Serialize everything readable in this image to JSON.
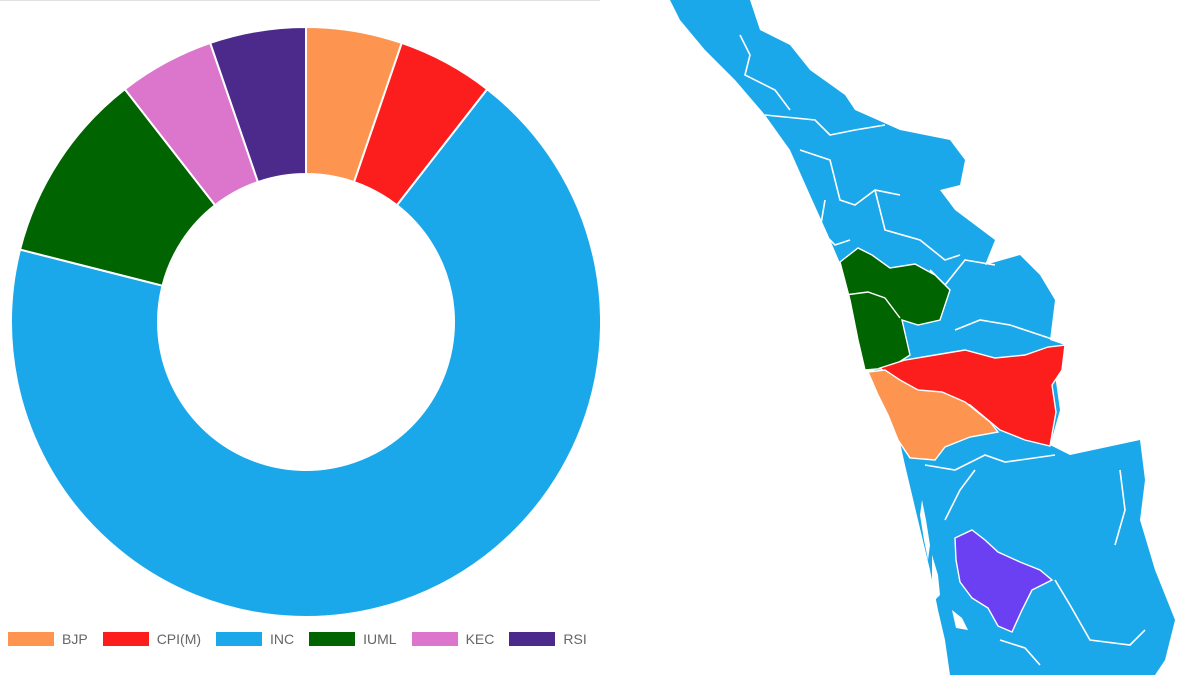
{
  "chart_data": [
    {
      "type": "pie",
      "variant": "doughnut",
      "title": "",
      "categories": [
        "BJP",
        "CPI(M)",
        "INC",
        "IUML",
        "KEC",
        "RSI"
      ],
      "values": [
        1,
        1,
        13,
        2,
        1,
        1
      ],
      "colors": [
        "#fd9550",
        "#fc1d1d",
        "#1ba8ea",
        "#006400",
        "#dc76cc",
        "#4b2a8b"
      ],
      "legend": {
        "placement": "bottom-left"
      }
    }
  ],
  "map": {
    "region": "Kerala",
    "colors": {
      "base": "#1ba8ea",
      "IUML": "#006400",
      "CPI(M)": "#fc1d1d",
      "BJP": "#fd9550",
      "RSI": "#6b3ff2",
      "border": "#ffffff"
    }
  }
}
